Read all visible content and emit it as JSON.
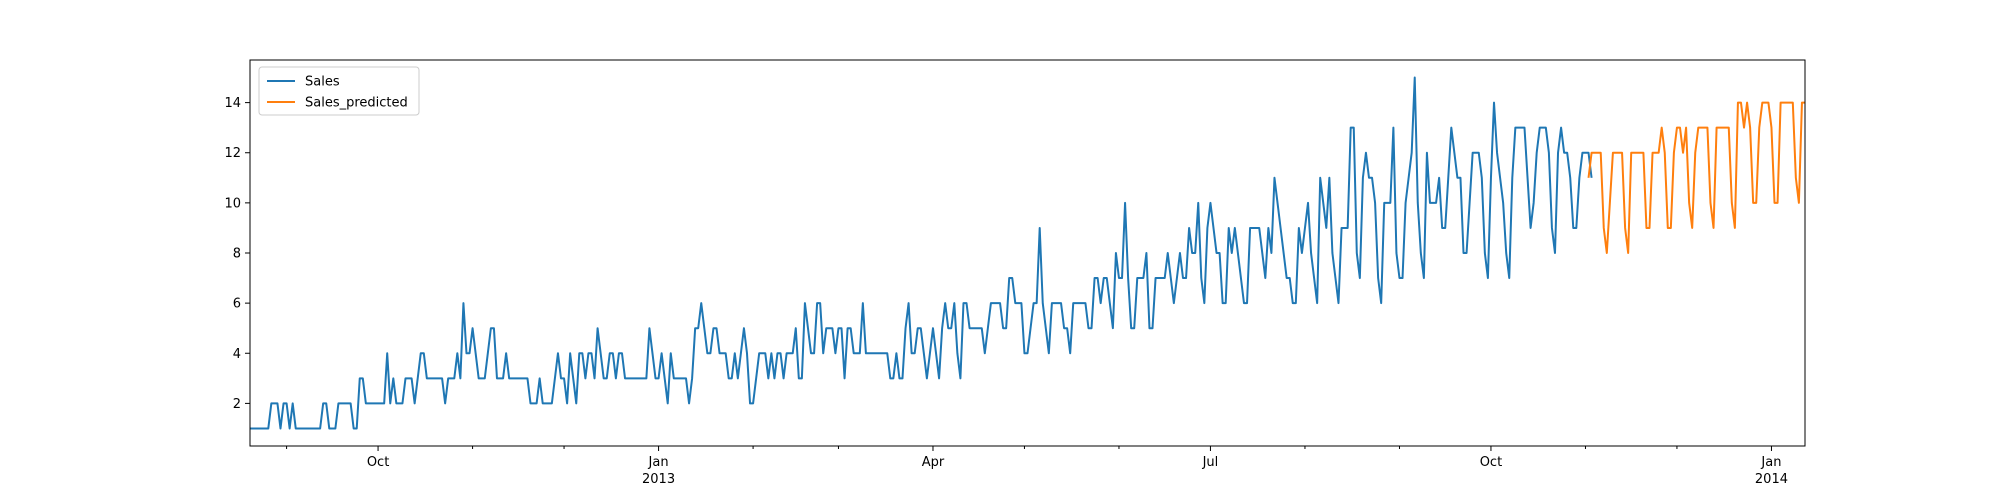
{
  "chart_data": {
    "type": "line",
    "title": "",
    "xlabel": "",
    "ylabel": "",
    "x_range": [
      "2012-08-20",
      "2014-01-12"
    ],
    "ylim": [
      0.3,
      15.7
    ],
    "grid": false,
    "legend_placement": "top-left",
    "y_ticks": [
      2,
      4,
      6,
      8,
      10,
      12,
      14
    ],
    "x_ticks": [
      {
        "date": "2012-10-01",
        "label": "Oct",
        "sublabel": ""
      },
      {
        "date": "2013-01-01",
        "label": "Jan",
        "sublabel": "2013"
      },
      {
        "date": "2013-04-01",
        "label": "Apr",
        "sublabel": ""
      },
      {
        "date": "2013-07-01",
        "label": "Jul",
        "sublabel": ""
      },
      {
        "date": "2013-10-01",
        "label": "Oct",
        "sublabel": ""
      },
      {
        "date": "2014-01-01",
        "label": "Jan",
        "sublabel": "2014"
      }
    ],
    "minor_ticks": [
      "2012-09-01",
      "2012-11-01",
      "2012-12-01",
      "2013-02-01",
      "2013-03-01",
      "2013-05-01",
      "2013-06-01",
      "2013-08-01",
      "2013-09-01",
      "2013-11-01",
      "2013-12-01"
    ],
    "series": [
      {
        "name": "Sales",
        "color": "#1f77b4",
        "start_date": "2012-08-20",
        "values": [
          1,
          1,
          1,
          1,
          1,
          1,
          1,
          2,
          2,
          2,
          1,
          2,
          2,
          1,
          2,
          1,
          1,
          1,
          1,
          1,
          1,
          1,
          1,
          1,
          2,
          2,
          1,
          1,
          1,
          2,
          2,
          2,
          2,
          2,
          1,
          1,
          3,
          3,
          2,
          2,
          2,
          2,
          2,
          2,
          2,
          4,
          2,
          3,
          2,
          2,
          2,
          3,
          3,
          3,
          2,
          3,
          4,
          4,
          3,
          3,
          3,
          3,
          3,
          3,
          2,
          3,
          3,
          3,
          4,
          3,
          6,
          4,
          4,
          5,
          4,
          3,
          3,
          3,
          4,
          5,
          5,
          3,
          3,
          3,
          4,
          3,
          3,
          3,
          3,
          3,
          3,
          3,
          2,
          2,
          2,
          3,
          2,
          2,
          2,
          2,
          3,
          4,
          3,
          3,
          2,
          4,
          3,
          2,
          4,
          4,
          3,
          4,
          4,
          3,
          5,
          4,
          3,
          3,
          4,
          4,
          3,
          4,
          4,
          3,
          3,
          3,
          3,
          3,
          3,
          3,
          3,
          5,
          4,
          3,
          3,
          4,
          3,
          2,
          4,
          3,
          3,
          3,
          3,
          3,
          2,
          3,
          5,
          5,
          6,
          5,
          4,
          4,
          5,
          5,
          4,
          4,
          4,
          3,
          3,
          4,
          3,
          4,
          5,
          4,
          2,
          2,
          3,
          4,
          4,
          4,
          3,
          4,
          3,
          4,
          4,
          3,
          4,
          4,
          4,
          5,
          3,
          3,
          6,
          5,
          4,
          4,
          6,
          6,
          4,
          5,
          5,
          5,
          4,
          5,
          5,
          3,
          5,
          5,
          4,
          4,
          4,
          6,
          4,
          4,
          4,
          4,
          4,
          4,
          4,
          4,
          3,
          3,
          4,
          3,
          3,
          5,
          6,
          4,
          4,
          5,
          5,
          4,
          3,
          4,
          5,
          4,
          3,
          5,
          6,
          5,
          5,
          6,
          4,
          3,
          6,
          6,
          5,
          5,
          5,
          5,
          5,
          4,
          5,
          6,
          6,
          6,
          6,
          5,
          5,
          7,
          7,
          6,
          6,
          6,
          4,
          4,
          5,
          6,
          6,
          9,
          6,
          5,
          4,
          6,
          6,
          6,
          6,
          5,
          5,
          4,
          6,
          6,
          6,
          6,
          6,
          5,
          5,
          7,
          7,
          6,
          7,
          7,
          6,
          5,
          8,
          7,
          7,
          10,
          7,
          5,
          5,
          7,
          7,
          7,
          8,
          5,
          5,
          7,
          7,
          7,
          7,
          8,
          7,
          6,
          7,
          8,
          7,
          7,
          9,
          8,
          8,
          10,
          7,
          6,
          9,
          10,
          9,
          8,
          8,
          6,
          6,
          9,
          8,
          9,
          8,
          7,
          6,
          6,
          9,
          9,
          9,
          9,
          8,
          7,
          9,
          8,
          11,
          10,
          9,
          8,
          7,
          7,
          6,
          6,
          9,
          8,
          9,
          10,
          8,
          7,
          6,
          11,
          10,
          9,
          11,
          8,
          7,
          6,
          9,
          9,
          9,
          13,
          13,
          8,
          7,
          11,
          12,
          11,
          11,
          10,
          7,
          6,
          10,
          10,
          10,
          13,
          8,
          7,
          7,
          10,
          11,
          12,
          15,
          10,
          8,
          7,
          12,
          10,
          10,
          10,
          11,
          9,
          9,
          11,
          13,
          12,
          11,
          11,
          8,
          8,
          10,
          12,
          12,
          12,
          11,
          8,
          7,
          11,
          14,
          12,
          11,
          10,
          8,
          7,
          11,
          13,
          13,
          13,
          13,
          11,
          9,
          10,
          12,
          13,
          13,
          13,
          12,
          9,
          8,
          12,
          13,
          12,
          12,
          11,
          9,
          9,
          11,
          12,
          12,
          12,
          11
        ]
      },
      {
        "name": "Sales_predicted",
        "color": "#ff7f0e",
        "start_date": "2013-11-02",
        "values": [
          11,
          12,
          12,
          12,
          12,
          9,
          8,
          10,
          12,
          12,
          12,
          12,
          9,
          8,
          12,
          12,
          12,
          12,
          12,
          9,
          9,
          12,
          12,
          12,
          13,
          12,
          9,
          9,
          12,
          13,
          13,
          12,
          13,
          10,
          9,
          12,
          13,
          13,
          13,
          13,
          10,
          9,
          13,
          13,
          13,
          13,
          13,
          10,
          9,
          14,
          14,
          13,
          14,
          13,
          10,
          10,
          13,
          14,
          14,
          14,
          13,
          10,
          10,
          14,
          14,
          14,
          14,
          14,
          11,
          10,
          14,
          14,
          14
        ]
      }
    ]
  }
}
